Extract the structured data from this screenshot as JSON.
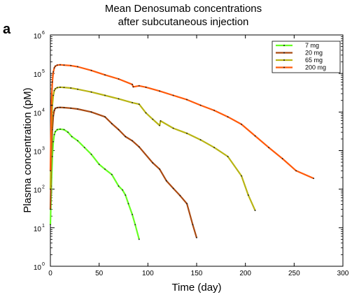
{
  "panel_label": "a",
  "chart_data": {
    "type": "line",
    "title": "Mean Denosumab concentrations",
    "subtitle": "after subcutaneous injection",
    "xlabel": "Time (day)",
    "ylabel": "Plasma concentration (pM)",
    "xlim": [
      0,
      300
    ],
    "ylim": [
      1,
      1000000
    ],
    "y_scale": "log",
    "x_ticks": [
      "0",
      "50",
      "100",
      "150",
      "200",
      "250",
      "300"
    ],
    "y_tick_base": "10",
    "y_tick_exponents": [
      "0",
      "1",
      "2",
      "3",
      "4",
      "5",
      "6"
    ],
    "grid": false,
    "legend_position": "top-right",
    "series": [
      {
        "name": "7 mg",
        "color": "#66ff22",
        "x": [
          0,
          1,
          2,
          3,
          4,
          5,
          7,
          10,
          14,
          18,
          22,
          28,
          35,
          42,
          50,
          56,
          63,
          70,
          74,
          77,
          80,
          84,
          87,
          91
        ],
        "y": [
          12,
          120,
          700,
          1700,
          2600,
          3100,
          3500,
          3600,
          3500,
          3000,
          2300,
          1800,
          1200,
          800,
          440,
          330,
          240,
          120,
          95,
          70,
          42,
          22,
          12,
          5
        ]
      },
      {
        "name": "20 mg",
        "color": "#a94a12",
        "x": [
          0,
          1,
          2,
          3,
          4,
          5,
          7,
          10,
          14,
          21,
          28,
          42,
          56,
          63,
          70,
          77,
          84,
          91,
          105,
          112,
          119,
          126,
          133,
          140,
          146,
          150
        ],
        "y": [
          30,
          700,
          3500,
          8000,
          11000,
          12500,
          13000,
          13200,
          13000,
          12600,
          12000,
          10000,
          7500,
          5000,
          3500,
          2300,
          1800,
          1250,
          480,
          330,
          165,
          105,
          68,
          42,
          12,
          5.5
        ]
      },
      {
        "name": "65 mg",
        "color": "#b8b414",
        "x": [
          0,
          1,
          2,
          3,
          4,
          5,
          7,
          10,
          14,
          21,
          28,
          42,
          56,
          70,
          84,
          91,
          98,
          105,
          112,
          113,
          126,
          140,
          154,
          168,
          182,
          196,
          203,
          210
        ],
        "y": [
          100,
          4000,
          15000,
          27000,
          36000,
          40000,
          43000,
          44000,
          43500,
          42000,
          39000,
          33000,
          27000,
          22000,
          17500,
          16000,
          9500,
          6500,
          4500,
          5900,
          3800,
          2800,
          1900,
          1200,
          700,
          220,
          70,
          28
        ]
      },
      {
        "name": "200 mg",
        "color": "#ff5a0a",
        "x": [
          0,
          1,
          2,
          3,
          4,
          5,
          7,
          10,
          14,
          21,
          28,
          42,
          56,
          70,
          84,
          85,
          91,
          98,
          112,
          126,
          140,
          154,
          168,
          182,
          196,
          210,
          224,
          238,
          252,
          270
        ],
        "y": [
          300,
          15000,
          60000,
          110000,
          140000,
          155000,
          165000,
          168000,
          165000,
          160000,
          150000,
          120000,
          92000,
          72000,
          52000,
          45000,
          48000,
          44000,
          35000,
          27000,
          21000,
          15000,
          11000,
          7500,
          4800,
          2400,
          1200,
          620,
          300,
          190
        ]
      }
    ]
  }
}
